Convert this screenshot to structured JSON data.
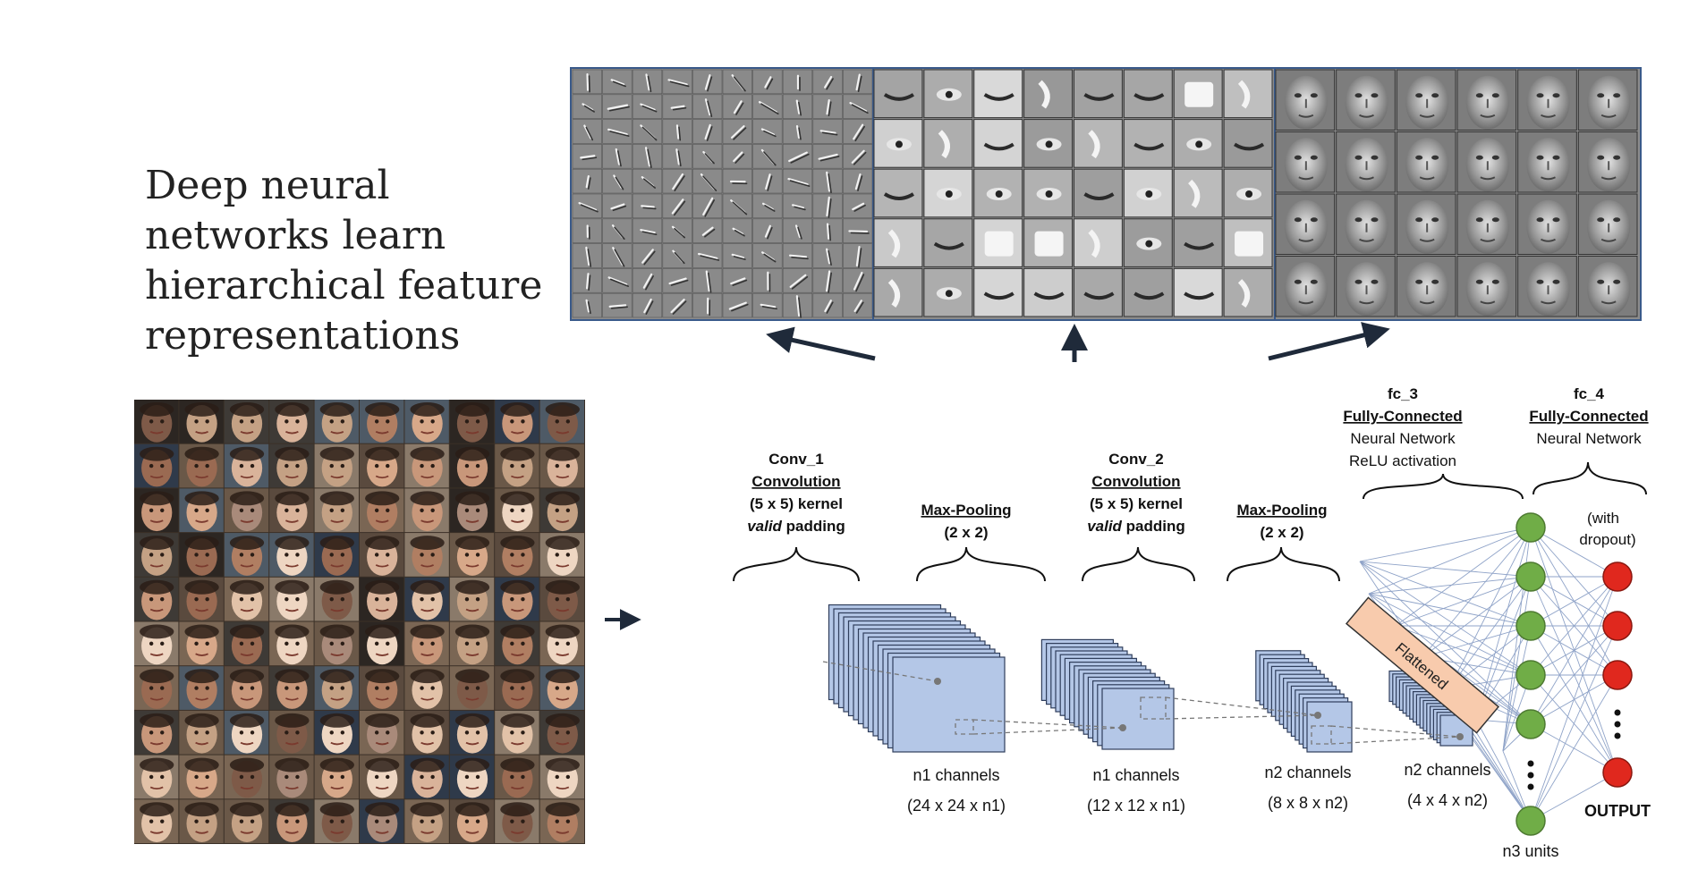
{
  "headline": {
    "lines": [
      "Deep neural",
      "networks learn",
      "hierarchical feature",
      "representations"
    ]
  },
  "feature_panels": {
    "icons": [
      "edge-filters-icon",
      "face-parts-filters-icon",
      "whole-face-filters-icon"
    ]
  },
  "input_grid": {
    "rows": 10,
    "cols": 10,
    "icon": "face-photo-icon"
  },
  "input_arrow": "right-arrow-icon",
  "layers": {
    "conv1": {
      "name": "Conv_1",
      "type": "Convolution",
      "kernel": "(5 x 5) kernel",
      "padding_em": "valid",
      "padding_rest": " padding"
    },
    "pool1": {
      "name": "Max-Pooling",
      "size": "(2 x 2)"
    },
    "conv2": {
      "name": "Conv_2",
      "type": "Convolution",
      "kernel": "(5 x 5) kernel",
      "padding_em": "valid",
      "padding_rest": " padding"
    },
    "pool2": {
      "name": "Max-Pooling",
      "size": "(2 x 2)"
    },
    "fc3": {
      "name": "fc_3",
      "type": "Fully-Connected",
      "line1": "Neural Network",
      "line2": "ReLU activation"
    },
    "fc4": {
      "name": "fc_4",
      "type": "Fully-Connected",
      "line1": "Neural Network"
    }
  },
  "dropout_note": [
    "(with",
    "dropout)"
  ],
  "flattened_label": "Flattened",
  "volumes": [
    {
      "channels": "n1 channels",
      "dims": "(24 x 24 x n1)"
    },
    {
      "channels": "n1 channels",
      "dims": "(12 x 12 x n1)"
    },
    {
      "channels": "n2 channels",
      "dims": "(8 x 8 x n2)"
    },
    {
      "channels": "n2 channels",
      "dims": "(4 x 4 x n2)"
    }
  ],
  "units_label": "n3 units",
  "output_label": "OUTPUT",
  "colors": {
    "feature_map_fill": "#b4c7e7",
    "feature_map_stroke": "#2f3e5c",
    "hidden_node": "#70ad47",
    "output_node": "#e0281e",
    "flattened_fill": "#f8cbad",
    "connection_line": "#8fa3c8",
    "panel_bg": "#8c8c8c",
    "arrow": "#1f2a3a"
  }
}
